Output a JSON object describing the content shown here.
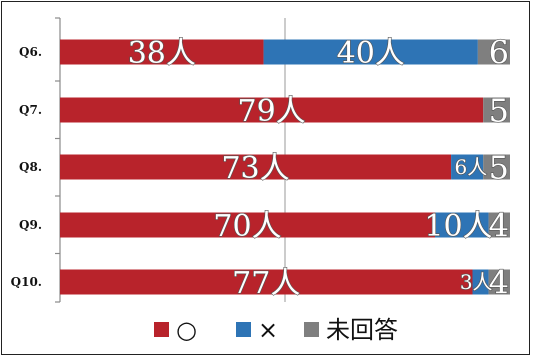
{
  "chart_data": {
    "type": "bar",
    "orientation": "horizontal",
    "stacked": true,
    "categories": [
      "Q6.",
      "Q7.",
      "Q8.",
      "Q9.",
      "Q10."
    ],
    "unit": "人",
    "series": [
      {
        "name": "○",
        "color": "#b8232b",
        "values": [
          38,
          79,
          73,
          70,
          77
        ]
      },
      {
        "name": "×",
        "color": "#2e74b5",
        "values": [
          40,
          0,
          6,
          10,
          3
        ]
      },
      {
        "name": "未回答",
        "color": "#7f7f7f",
        "values": [
          6,
          5,
          5,
          4,
          4
        ]
      }
    ],
    "data_labels": [
      [
        "38人",
        "40人",
        "6"
      ],
      [
        "79人",
        "",
        "5"
      ],
      [
        "73人",
        "6人",
        "5"
      ],
      [
        "70人",
        "10人",
        "4"
      ],
      [
        "77人",
        "3人",
        "4"
      ]
    ],
    "xlim": [
      0,
      84
    ],
    "grid": "vertical gridline at midpoint",
    "legend": "bottom",
    "title": "",
    "xlabel": "",
    "ylabel": ""
  }
}
